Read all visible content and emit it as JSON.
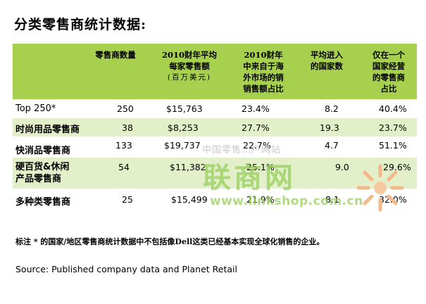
{
  "title": "分类零售商统计数据:",
  "header": {
    "col1": [
      "零售商数量"
    ],
    "col2": [
      "2010财年平均",
      "每家零售额"
    ],
    "col2_sub": "(百万美元)",
    "col3": [
      "2010财年",
      "中来自于海",
      "外市场的销",
      "销售额占比"
    ],
    "col4": [
      "平均进入",
      "的国家数"
    ],
    "col5": [
      "仅在一个",
      "国家经营",
      "的零售商",
      "占比"
    ]
  },
  "rows": [
    {
      "label": [
        "Top 250*"
      ],
      "count": "250",
      "avg": "$15,763",
      "foreign": "23.4%",
      "countries": "8.2",
      "single": "40.4%"
    },
    {
      "label": [
        "时尚用品零售商"
      ],
      "count": "38",
      "avg": "$8,253",
      "foreign": "27.7%",
      "countries": "19.3",
      "single": "23.7%"
    },
    {
      "label": [
        "快消品零售商"
      ],
      "count": "133",
      "avg": "$19,737",
      "foreign": "22.7%",
      "countries": "4.7",
      "single": "51.1%"
    },
    {
      "label": [
        "硬百货&休闲",
        "产品零售商"
      ],
      "count": "54",
      "avg": "$11,382",
      "foreign": "25.1%",
      "countries": "9.0",
      "single": "29.6%"
    },
    {
      "label": [
        "多种类零售商"
      ],
      "count": "25",
      "avg": "$15,499",
      "foreign": "21.9%",
      "countries": "8.1",
      "single": "32.0%"
    }
  ],
  "note": "标注 * 的国家/地区零售商统计数据中不包括像Dell这类已经基本实现全球化销售的企业。",
  "source": "Source: Published company data and Planet Retail",
  "watermark": {
    "top": "中国零售…户网站",
    "big": "联商网",
    "url": "www.linkshop.com.cn"
  },
  "colors": {
    "header": "#a6d04e",
    "stripe": "#e3efc9",
    "watermark": "#96cd5a"
  }
}
